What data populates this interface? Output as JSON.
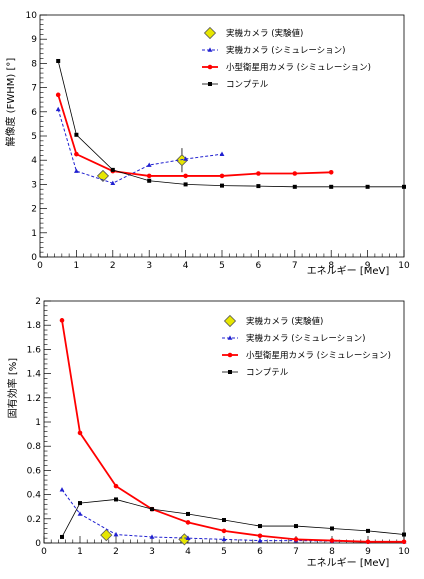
{
  "colors": {
    "measured": "#e6e600",
    "sim_real": "#2020d0",
    "sim_small": "#ff0000",
    "compton": "#000000"
  },
  "chart_data": [
    {
      "type": "line",
      "xlabel": "エネルギー [MeV]",
      "ylabel": "解像度 (FWHM) [°]",
      "xlim": [
        0,
        10
      ],
      "ylim": [
        0,
        10
      ],
      "xticks": [
        0,
        1,
        2,
        3,
        4,
        5,
        6,
        7,
        8,
        9,
        10
      ],
      "yticks": [
        0,
        1,
        2,
        3,
        4,
        5,
        6,
        7,
        8,
        9,
        10
      ],
      "series": [
        {
          "name": "実機カメラ (実験値)",
          "style": "measured",
          "x": [
            1.73,
            3.9
          ],
          "y": [
            3.35,
            4.0
          ],
          "yerr": [
            0,
            0.5
          ]
        },
        {
          "name": "実機カメラ (シミュレーション)",
          "style": "sim_real",
          "x": [
            0.5,
            1,
            2,
            3,
            4,
            5
          ],
          "y": [
            6.1,
            3.55,
            3.05,
            3.8,
            4.05,
            4.25
          ]
        },
        {
          "name": "小型衛星用カメラ (シミュレーション)",
          "style": "sim_small",
          "x": [
            0.5,
            1,
            2,
            3,
            4,
            5,
            6,
            7,
            8
          ],
          "y": [
            6.7,
            4.25,
            3.55,
            3.35,
            3.35,
            3.35,
            3.45,
            3.45,
            3.5
          ]
        },
        {
          "name": "コンプテル",
          "style": "compton",
          "x": [
            0.5,
            1,
            2,
            3,
            4,
            5,
            6,
            7,
            8,
            9,
            10
          ],
          "y": [
            8.1,
            5.05,
            3.6,
            3.15,
            3.0,
            2.95,
            2.93,
            2.9,
            2.9,
            2.9,
            2.9
          ]
        }
      ]
    },
    {
      "type": "line",
      "xlabel": "エネルギー [MeV]",
      "ylabel": "固有効率 [%]",
      "xlim": [
        0,
        10
      ],
      "ylim": [
        0,
        2
      ],
      "xticks": [
        0,
        1,
        2,
        3,
        4,
        5,
        6,
        7,
        8,
        9,
        10
      ],
      "yticks": [
        0,
        0.2,
        0.4,
        0.6,
        0.8,
        1,
        1.2,
        1.4,
        1.6,
        1.8,
        2
      ],
      "series": [
        {
          "name": "実機カメラ (実験値)",
          "style": "measured",
          "x": [
            1.73,
            3.9
          ],
          "y": [
            0.065,
            0.03
          ],
          "yerr": [
            0,
            0
          ]
        },
        {
          "name": "実機カメラ (シミュレーション)",
          "style": "sim_real",
          "x": [
            0.5,
            1,
            2,
            3,
            4,
            5,
            6,
            7,
            8,
            9,
            10
          ],
          "y": [
            0.44,
            0.24,
            0.07,
            0.05,
            0.04,
            0.03,
            0.02,
            0.02,
            0.015,
            0.01,
            0.01
          ]
        },
        {
          "name": "小型衛星用カメラ (シミュレーション)",
          "style": "sim_small",
          "x": [
            0.5,
            1,
            2,
            3,
            4,
            5,
            6,
            7,
            8,
            9,
            10
          ],
          "y": [
            1.84,
            0.91,
            0.47,
            0.28,
            0.17,
            0.1,
            0.06,
            0.03,
            0.02,
            0.01,
            0.01
          ]
        },
        {
          "name": "コンプテル",
          "style": "compton",
          "x": [
            0.5,
            1,
            2,
            3,
            4,
            5,
            6,
            7,
            8,
            9,
            10
          ],
          "y": [
            0.05,
            0.33,
            0.36,
            0.28,
            0.24,
            0.19,
            0.14,
            0.14,
            0.12,
            0.1,
            0.07
          ]
        }
      ]
    }
  ]
}
